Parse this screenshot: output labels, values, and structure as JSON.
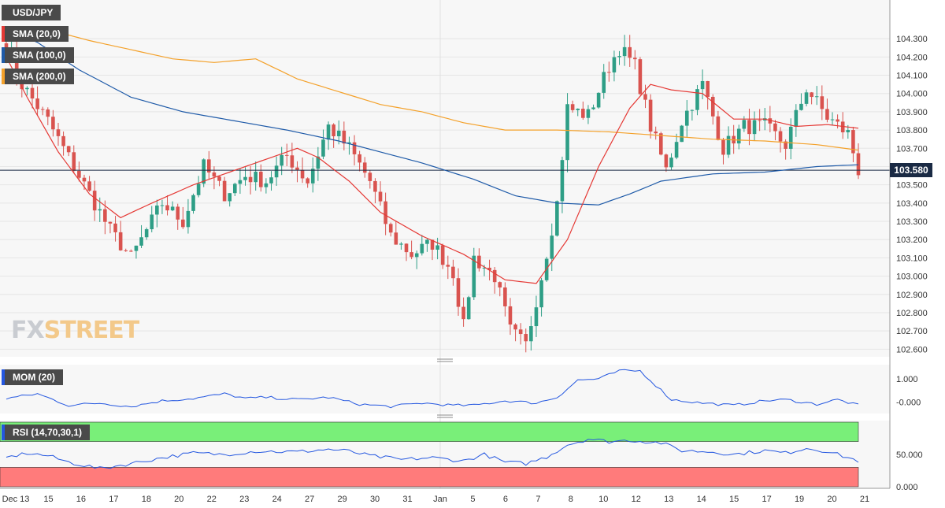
{
  "instrument": "USD/JPY",
  "last_price": "103.580",
  "logo": {
    "part1": "FX",
    "part2": "STREET"
  },
  "indicators": {
    "sma20": {
      "label": "SMA (20,0)",
      "color": "#e53935"
    },
    "sma100": {
      "label": "SMA (100,0)",
      "color": "#1e5aa8"
    },
    "sma200": {
      "label": "SMA (200,0)",
      "color": "#f4a12a"
    },
    "mom": {
      "label": "MOM (20)",
      "color": "#2457e0"
    },
    "rsi": {
      "label": "RSI (14,70,30,1)",
      "color": "#2457e0"
    }
  },
  "colors": {
    "up": "#2e9e86",
    "down": "#d9534f",
    "overbought_zone": "#79ef79",
    "oversold_zone": "#ff7b7b"
  },
  "chart_data": {
    "type": "candlestick",
    "title": "USD/JPY",
    "price_axis": {
      "ylim": [
        102.58,
        104.4
      ],
      "ticks": [
        "104.300",
        "104.200",
        "104.100",
        "104.000",
        "103.900",
        "103.800",
        "103.700",
        "103.600",
        "103.500",
        "103.400",
        "103.300",
        "103.200",
        "103.100",
        "103.000",
        "102.900",
        "102.800",
        "102.700",
        "102.600"
      ]
    },
    "x_labels": [
      "Dec 13",
      "15",
      "16",
      "17",
      "18",
      "20",
      "22",
      "23",
      "24",
      "27",
      "29",
      "30",
      "31",
      "Jan",
      "5",
      "6",
      "7",
      "8",
      "10",
      "12",
      "13",
      "14",
      "15",
      "17",
      "19",
      "20",
      "21"
    ],
    "price_anchors": [
      [
        0,
        104.28
      ],
      [
        3,
        104.05
      ],
      [
        8,
        103.85
      ],
      [
        12,
        103.65
      ],
      [
        16,
        103.45
      ],
      [
        20,
        103.25
      ],
      [
        24,
        103.1
      ],
      [
        27,
        103.25
      ],
      [
        30,
        103.4
      ],
      [
        34,
        103.3
      ],
      [
        38,
        103.6
      ],
      [
        42,
        103.45
      ],
      [
        46,
        103.55
      ],
      [
        50,
        103.52
      ],
      [
        54,
        103.66
      ],
      [
        58,
        103.52
      ],
      [
        62,
        103.82
      ],
      [
        66,
        103.7
      ],
      [
        70,
        103.52
      ],
      [
        74,
        103.22
      ],
      [
        78,
        103.12
      ],
      [
        82,
        103.18
      ],
      [
        86,
        103.02
      ],
      [
        88,
        102.72
      ],
      [
        90,
        103.1
      ],
      [
        94,
        103.0
      ],
      [
        97,
        102.7
      ],
      [
        100,
        102.62
      ],
      [
        103,
        103.0
      ],
      [
        106,
        103.4
      ],
      [
        108,
        103.92
      ],
      [
        112,
        103.88
      ],
      [
        116,
        104.15
      ],
      [
        118,
        104.25
      ],
      [
        121,
        104.15
      ],
      [
        124,
        103.82
      ],
      [
        127,
        103.58
      ],
      [
        130,
        103.85
      ],
      [
        134,
        104.05
      ],
      [
        138,
        103.7
      ],
      [
        142,
        103.82
      ],
      [
        146,
        103.82
      ],
      [
        150,
        103.72
      ],
      [
        154,
        104.03
      ],
      [
        158,
        103.87
      ],
      [
        162,
        103.78
      ],
      [
        164,
        103.58
      ]
    ],
    "sma20_anchors": [
      [
        0,
        104.2
      ],
      [
        4,
        103.98
      ],
      [
        10,
        103.68
      ],
      [
        16,
        103.45
      ],
      [
        22,
        103.32
      ],
      [
        28,
        103.4
      ],
      [
        36,
        103.5
      ],
      [
        44,
        103.58
      ],
      [
        50,
        103.64
      ],
      [
        56,
        103.7
      ],
      [
        60,
        103.65
      ],
      [
        66,
        103.52
      ],
      [
        72,
        103.35
      ],
      [
        80,
        103.22
      ],
      [
        88,
        103.12
      ],
      [
        96,
        102.98
      ],
      [
        102,
        102.96
      ],
      [
        108,
        103.2
      ],
      [
        114,
        103.6
      ],
      [
        120,
        103.92
      ],
      [
        124,
        104.05
      ],
      [
        128,
        104.02
      ],
      [
        134,
        104.0
      ],
      [
        140,
        103.86
      ],
      [
        146,
        103.86
      ],
      [
        152,
        103.82
      ],
      [
        158,
        103.83
      ],
      [
        164,
        103.81
      ]
    ],
    "sma100_anchors": [
      [
        0,
        104.35
      ],
      [
        6,
        104.28
      ],
      [
        14,
        104.13
      ],
      [
        24,
        103.98
      ],
      [
        34,
        103.9
      ],
      [
        44,
        103.85
      ],
      [
        54,
        103.8
      ],
      [
        64,
        103.74
      ],
      [
        72,
        103.68
      ],
      [
        80,
        103.62
      ],
      [
        90,
        103.53
      ],
      [
        98,
        103.44
      ],
      [
        106,
        103.4
      ],
      [
        114,
        103.39
      ],
      [
        120,
        103.45
      ],
      [
        126,
        103.52
      ],
      [
        136,
        103.56
      ],
      [
        146,
        103.57
      ],
      [
        156,
        103.6
      ],
      [
        164,
        103.61
      ]
    ],
    "sma200_anchors": [
      [
        0,
        104.36
      ],
      [
        8,
        104.35
      ],
      [
        16,
        104.29
      ],
      [
        24,
        104.24
      ],
      [
        32,
        104.19
      ],
      [
        40,
        104.17
      ],
      [
        48,
        104.19
      ],
      [
        56,
        104.08
      ],
      [
        64,
        104.01
      ],
      [
        72,
        103.94
      ],
      [
        80,
        103.9
      ],
      [
        88,
        103.84
      ],
      [
        96,
        103.8
      ],
      [
        106,
        103.8
      ],
      [
        116,
        103.79
      ],
      [
        126,
        103.77
      ],
      [
        136,
        103.75
      ],
      [
        146,
        103.74
      ],
      [
        156,
        103.72
      ],
      [
        164,
        103.69
      ]
    ],
    "mom_axis": {
      "ylim": [
        -0.4,
        1.55
      ],
      "ticks": [
        "1.000",
        "-0.000"
      ]
    },
    "mom_anchors": [
      [
        0,
        0.15
      ],
      [
        6,
        0.35
      ],
      [
        12,
        -0.15
      ],
      [
        18,
        -0.05
      ],
      [
        24,
        -0.2
      ],
      [
        30,
        0.05
      ],
      [
        36,
        0.15
      ],
      [
        42,
        0.35
      ],
      [
        46,
        0.15
      ],
      [
        50,
        0.2
      ],
      [
        56,
        0.1
      ],
      [
        62,
        0.2
      ],
      [
        68,
        -0.1
      ],
      [
        74,
        -0.2
      ],
      [
        80,
        -0.05
      ],
      [
        86,
        -0.15
      ],
      [
        90,
        -0.15
      ],
      [
        96,
        0.05
      ],
      [
        102,
        -0.05
      ],
      [
        106,
        0.2
      ],
      [
        110,
        0.95
      ],
      [
        114,
        1.0
      ],
      [
        118,
        1.35
      ],
      [
        122,
        1.35
      ],
      [
        128,
        0.1
      ],
      [
        134,
        -0.05
      ],
      [
        140,
        -0.15
      ],
      [
        146,
        0.05
      ],
      [
        150,
        0.1
      ],
      [
        156,
        -0.1
      ],
      [
        160,
        0.1
      ],
      [
        164,
        -0.15
      ]
    ],
    "rsi_axis": {
      "ylim": [
        0,
        100
      ],
      "ticks": [
        "50.000",
        "0.000"
      ],
      "overbought": 70,
      "oversold": 30
    },
    "rsi_anchors": [
      [
        0,
        45
      ],
      [
        4,
        52
      ],
      [
        8,
        48
      ],
      [
        12,
        38
      ],
      [
        18,
        28
      ],
      [
        24,
        36
      ],
      [
        30,
        45
      ],
      [
        36,
        52
      ],
      [
        42,
        50
      ],
      [
        48,
        55
      ],
      [
        56,
        54
      ],
      [
        62,
        58
      ],
      [
        66,
        55
      ],
      [
        70,
        48
      ],
      [
        76,
        42
      ],
      [
        82,
        45
      ],
      [
        88,
        40
      ],
      [
        92,
        50
      ],
      [
        96,
        38
      ],
      [
        100,
        36
      ],
      [
        104,
        46
      ],
      [
        108,
        65
      ],
      [
        112,
        74
      ],
      [
        116,
        70
      ],
      [
        120,
        72
      ],
      [
        126,
        68
      ],
      [
        130,
        56
      ],
      [
        136,
        54
      ],
      [
        140,
        50
      ],
      [
        146,
        56
      ],
      [
        150,
        52
      ],
      [
        154,
        60
      ],
      [
        158,
        55
      ],
      [
        162,
        45
      ],
      [
        164,
        40
      ]
    ]
  }
}
